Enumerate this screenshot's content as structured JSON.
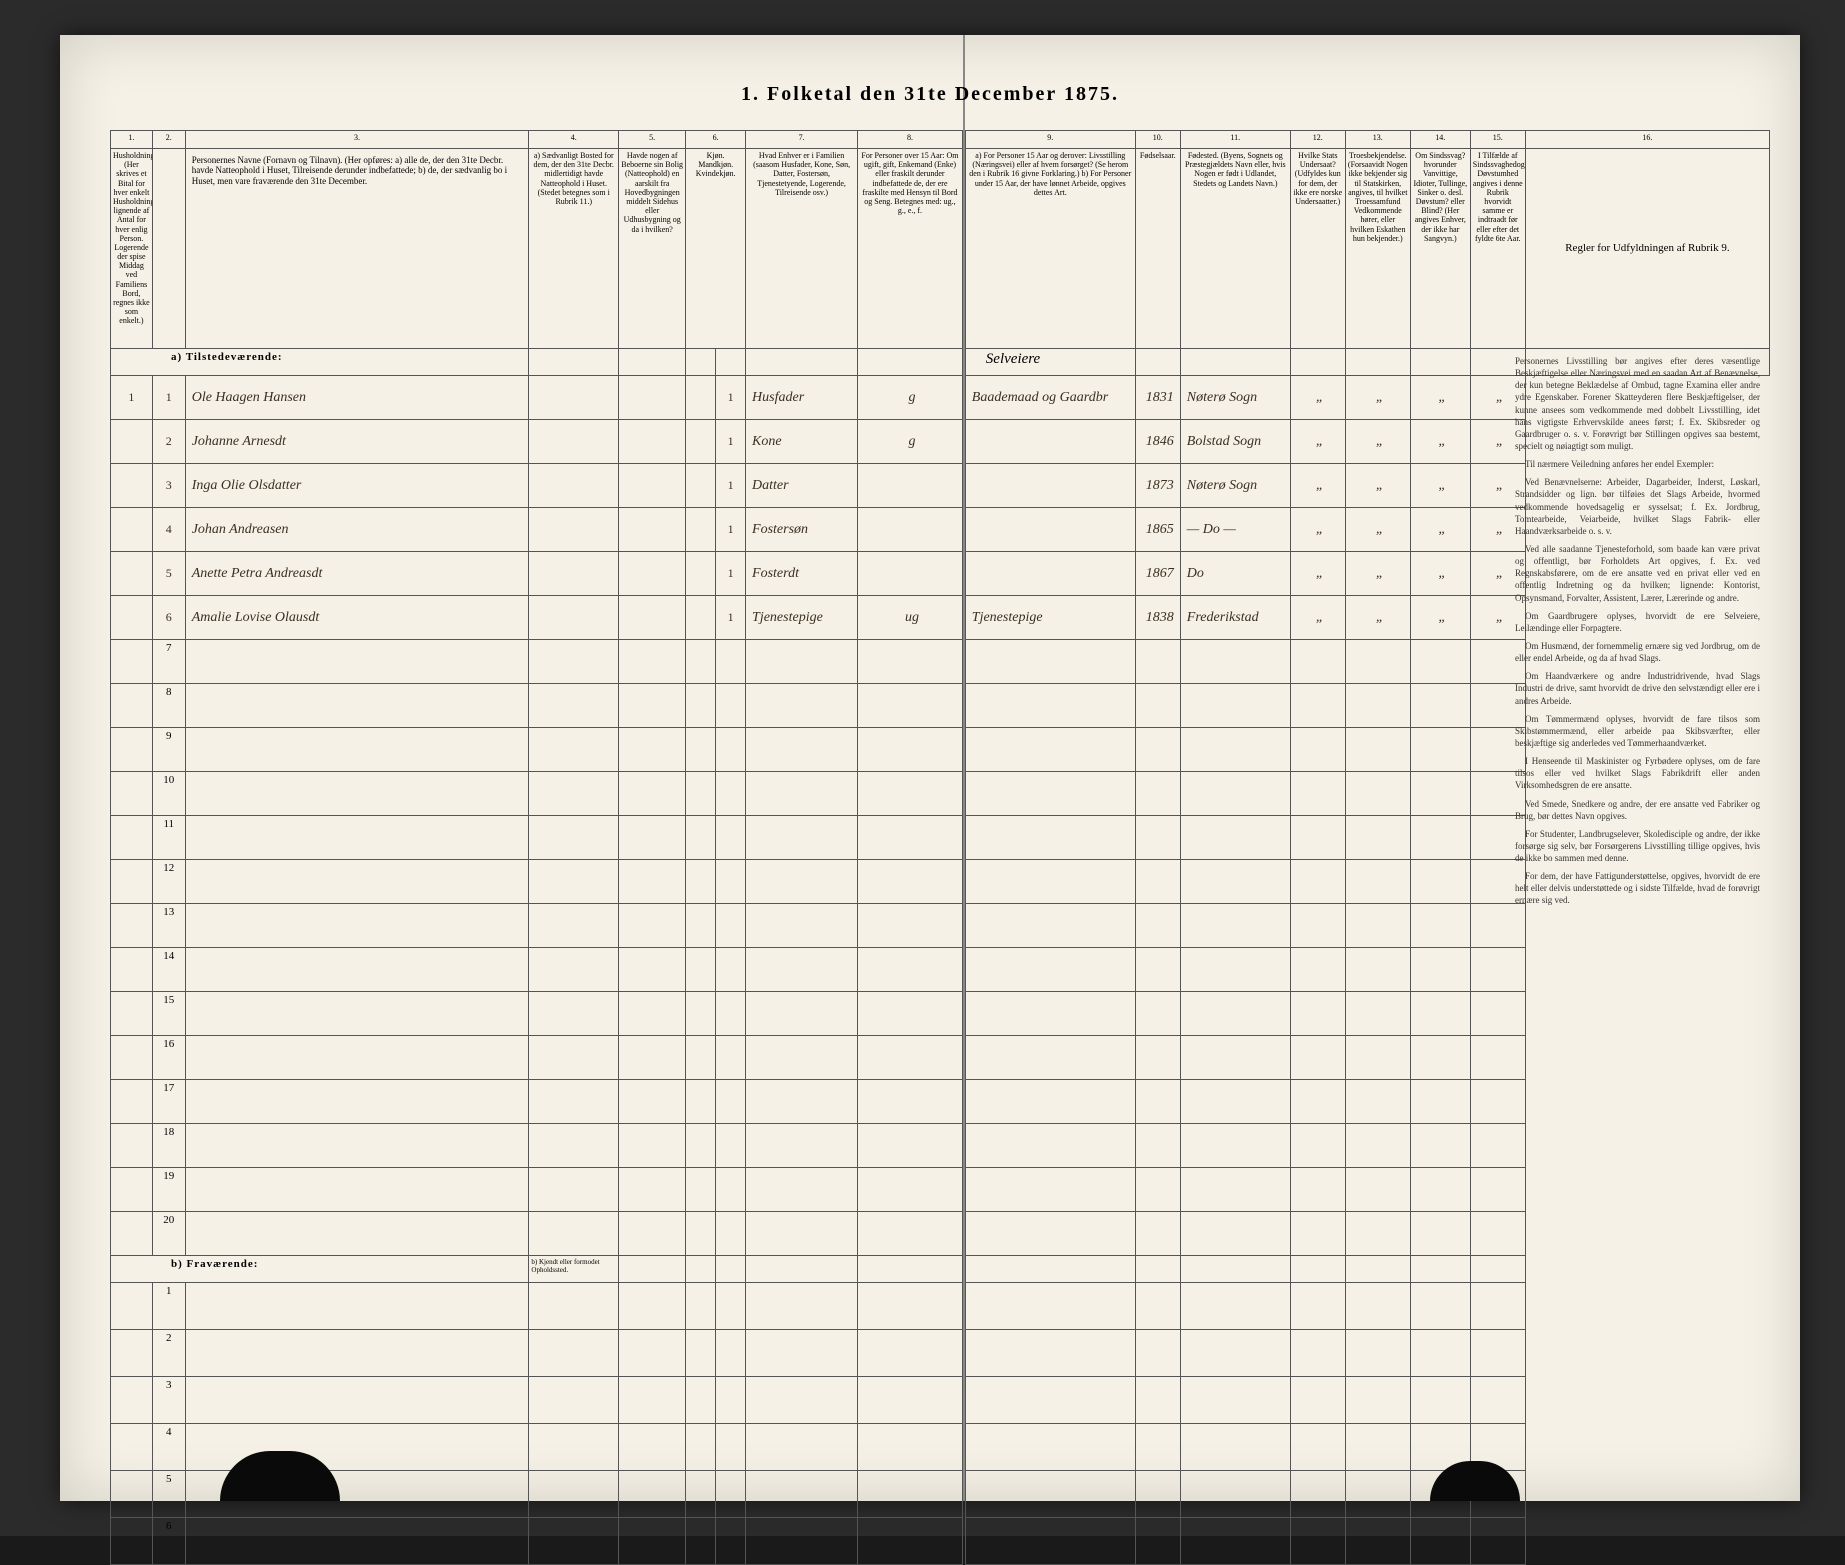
{
  "title": "1. Folketal den 31te December 1875.",
  "columns_left": {
    "c1": "1.",
    "c2": "2.",
    "c3": "3.",
    "c4": "4.",
    "c5": "5.",
    "c6": "6.",
    "c7": "7.",
    "c8": "8.",
    "h1": "Husholdninger. (Her skrives et Bital for hver enkelt Husholdning; lignende af Antal for hver enlig Person. Logerende der spise Middag ved Familiens Bord, regnes ikke som enkelt.)",
    "h2": "Personernes Navne (Fornavn og Tilnavn). (Her opføres: a) alle de, der den 31te Decbr. havde Natteophold i Huset, Tilreisende derunder indbefattede; b) de, der sædvanlig bo i Huset, men vare fraværende den 31te December.",
    "h3": "a) Sædvanligt Bosted for dem, der den 31te Decbr. midlertidigt havde Natteophold i Huset. (Stedet betegnes som i Rubrik 11.)",
    "h4": "Havde nogen af Beboerne sin Bolig (Natteophold) en aarskilt fra Hovedbygningen middelt Sidehus eller Udhusbygning og da i hvilken?",
    "h5": "Kjøn. Mandkjøn. Kvindekjøn.",
    "h6": "Hvad Enhver er i Familien (saasom Husfader, Kone, Søn, Datter, Fostersøn, Tjenestetyende, Logerende, Tilreisende osv.)",
    "h7": "For Personer over 15 Aar: Om ugift, gift, Enkemand (Enke) eller fraskilt derunder indbefattede de, der ere fraskilte med Hensyn til Bord og Seng. Betegnes med: ug., g., e., f."
  },
  "columns_right": {
    "c9": "9.",
    "c10": "10.",
    "c11": "11.",
    "c12": "12.",
    "c13": "13.",
    "c14": "14.",
    "c15": "15.",
    "c16": "16.",
    "h9": "a) For Personer 15 Aar og derover: Livsstilling (Næringsvei) eller af hvem forsørget? (Se herom den i Rubrik 16 givne Forklaring.) b) For Personer under 15 Aar, der have lønnet Arbeide, opgives dettes Art.",
    "h10": "Fødselsaar.",
    "h11": "Fødested. (Byens, Sognets og Præstegjældets Navn eller, hvis Nogen er født i Udlandet, Stedets og Landets Navn.)",
    "h12": "Hvilke Stats Undersaat? (Udfyldes kun for dem, der ikke ere norske Undersaatter.)",
    "h13": "Troesbekjendelse. (Forsaavidt Nogen ikke bekjender sig til Statskirken, angives, til hvilket Troessamfund Vedkommende hører, eller hvilken Eskathen hun bekjender.)",
    "h14": "Om Sindssvag? hvorunder Vanvittige, Idioter, Tullinge, Sinker o. desl. Døvstum? eller Blind? (Her angives Enhver, der ikke har Sangvyn.)",
    "h15": "I Tilfælde af Sindssvaghedog Døvstumhed angives i denne Rubrik hvorvidt samme er indtraadt før eller efter det fyldte 6te Aar.",
    "h16": "Regler for Udfyldningen af Rubrik 9."
  },
  "section_a": "a) Tilstedeværende:",
  "section_b": "b) Fraværende:",
  "section_b_note": "b) Kjendt eller formodet Opholdssted.",
  "rows": [
    {
      "n": "1",
      "hh": "1",
      "name": "Ole Haagen Hansen",
      "c5": "1",
      "c7": "Husfader",
      "c8": "g",
      "c9": "Baademaad og Gaardbr",
      "c10": "1831",
      "c11": "Nøterø Sogn"
    },
    {
      "n": "2",
      "hh": "",
      "name": "Johanne Arnesdt",
      "c5": "1",
      "c7": "Kone",
      "c8": "g",
      "c9": "",
      "c10": "1846",
      "c11": "Bolstad Sogn"
    },
    {
      "n": "3",
      "hh": "",
      "name": "Inga Olie Olsdatter",
      "c5": "1",
      "c7": "Datter",
      "c8": "",
      "c9": "",
      "c10": "1873",
      "c11": "Nøterø Sogn"
    },
    {
      "n": "4",
      "hh": "",
      "name": "Johan Andreasen",
      "c5": "1",
      "c7": "Fostersøn",
      "c8": "",
      "c9": "",
      "c10": "1865",
      "c11": "— Do —"
    },
    {
      "n": "5",
      "hh": "",
      "name": "Anette Petra Andreasdt",
      "c5": "1",
      "c7": "Fosterdt",
      "c8": "",
      "c9": "",
      "c10": "1867",
      "c11": "Do"
    },
    {
      "n": "6",
      "hh": "",
      "name": "Amalie Lovise Olausdt",
      "c5": "1",
      "c7": "Tjenestepige",
      "c8": "ug",
      "c9": "Tjenestepige",
      "c10": "1838",
      "c11": "Frederikstad"
    }
  ],
  "empty_rows_a": [
    "7",
    "8",
    "9",
    "10",
    "11",
    "12",
    "13",
    "14",
    "15",
    "16",
    "17",
    "18",
    "19",
    "20"
  ],
  "empty_rows_b": [
    "1",
    "2",
    "3",
    "4",
    "5",
    "6"
  ],
  "instructions": {
    "p1": "Personernes Livsstilling bør angives efter deres væsentlige Beskjæftigelse eller Næringsvei med en saadan Art af Benævnelse, der kun betegne Beklædelse af Ombud, tagne Examina eller andre ydre Egenskaber. Forener Skatteyderen flere Beskjæftigelser, der kunne ansees som vedkommende med dobbelt Livsstilling, idet hans vigtigste Erhvervskilde anees først; f. Ex. Skibsreder og Gaardbruger o. s. v. Forøvrigt bør Stillingen opgives saa bestemt, specielt og nøiagtigt som muligt.",
    "p2": "Til nærmere Veiledning anføres her endel Exempler:",
    "p3": "Ved Benævnelserne: Arbeider, Dagarbeider, Inderst, Løskarl, Strandsidder og lign. bør tilføies det Slags Arbeide, hvormed vedkommende hovedsagelig er sysselsat; f. Ex. Jordbrug, Tomtearbeide, Veiarbeide, hvilket Slags Fabrik- eller Haandværksarbeide o. s. v.",
    "p4": "Ved alle saadanne Tjenesteforhold, som baade kan være privat og offentligt, bør Forholdets Art opgives, f. Ex. ved Regnskabsførere, om de ere ansatte ved en privat eller ved en offentlig Indretning og da hvilken; lignende: Kontorist, Opsynsmand, Forvalter, Assistent, Lærer, Lærerinde og andre.",
    "p5": "Om Gaardbrugere oplyses, hvorvidt de ere Selveiere, Leilændinge eller Forpagtere.",
    "p6": "Om Husmænd, der fornemmelig ernære sig ved Jordbrug, om de eller endel Arbeide, og da af hvad Slags.",
    "p7": "Om Haandværkere og andre Industridrivende, hvad Slags Industri de drive, samt hvorvidt de drive den selvstændigt eller ere i andres Arbeide.",
    "p8": "Om Tømmermænd oplyses, hvorvidt de fare tilsos som Skibstømmermænd, eller arbeide paa Skibsværfter, eller beskjæftige sig anderledes ved Tømmerhaandværket.",
    "p9": "I Henseende til Maskinister og Fyrbødere oplyses, om de fare tilsos eller ved hvilket Slags Fabrikdrift eller anden Virksomhedsgren de ere ansatte.",
    "p10": "Ved Smede, Snedkere og andre, der ere ansatte ved Fabriker og Brug, bør dettes Navn opgives.",
    "p11": "For Studenter, Landbrugselever, Skoledisciple og andre, der ikke forsørge sig selv, bør Forsørgerens Livsstilling tillige opgives, hvis de ikke bo sammen med denne.",
    "p12": "For dem, der have Fattigunderstøttelse, opgives, hvorvidt de ere helt eller delvis understøttede og i sidste Tilfælde, hvad de forøvrigt ernære sig ved."
  }
}
